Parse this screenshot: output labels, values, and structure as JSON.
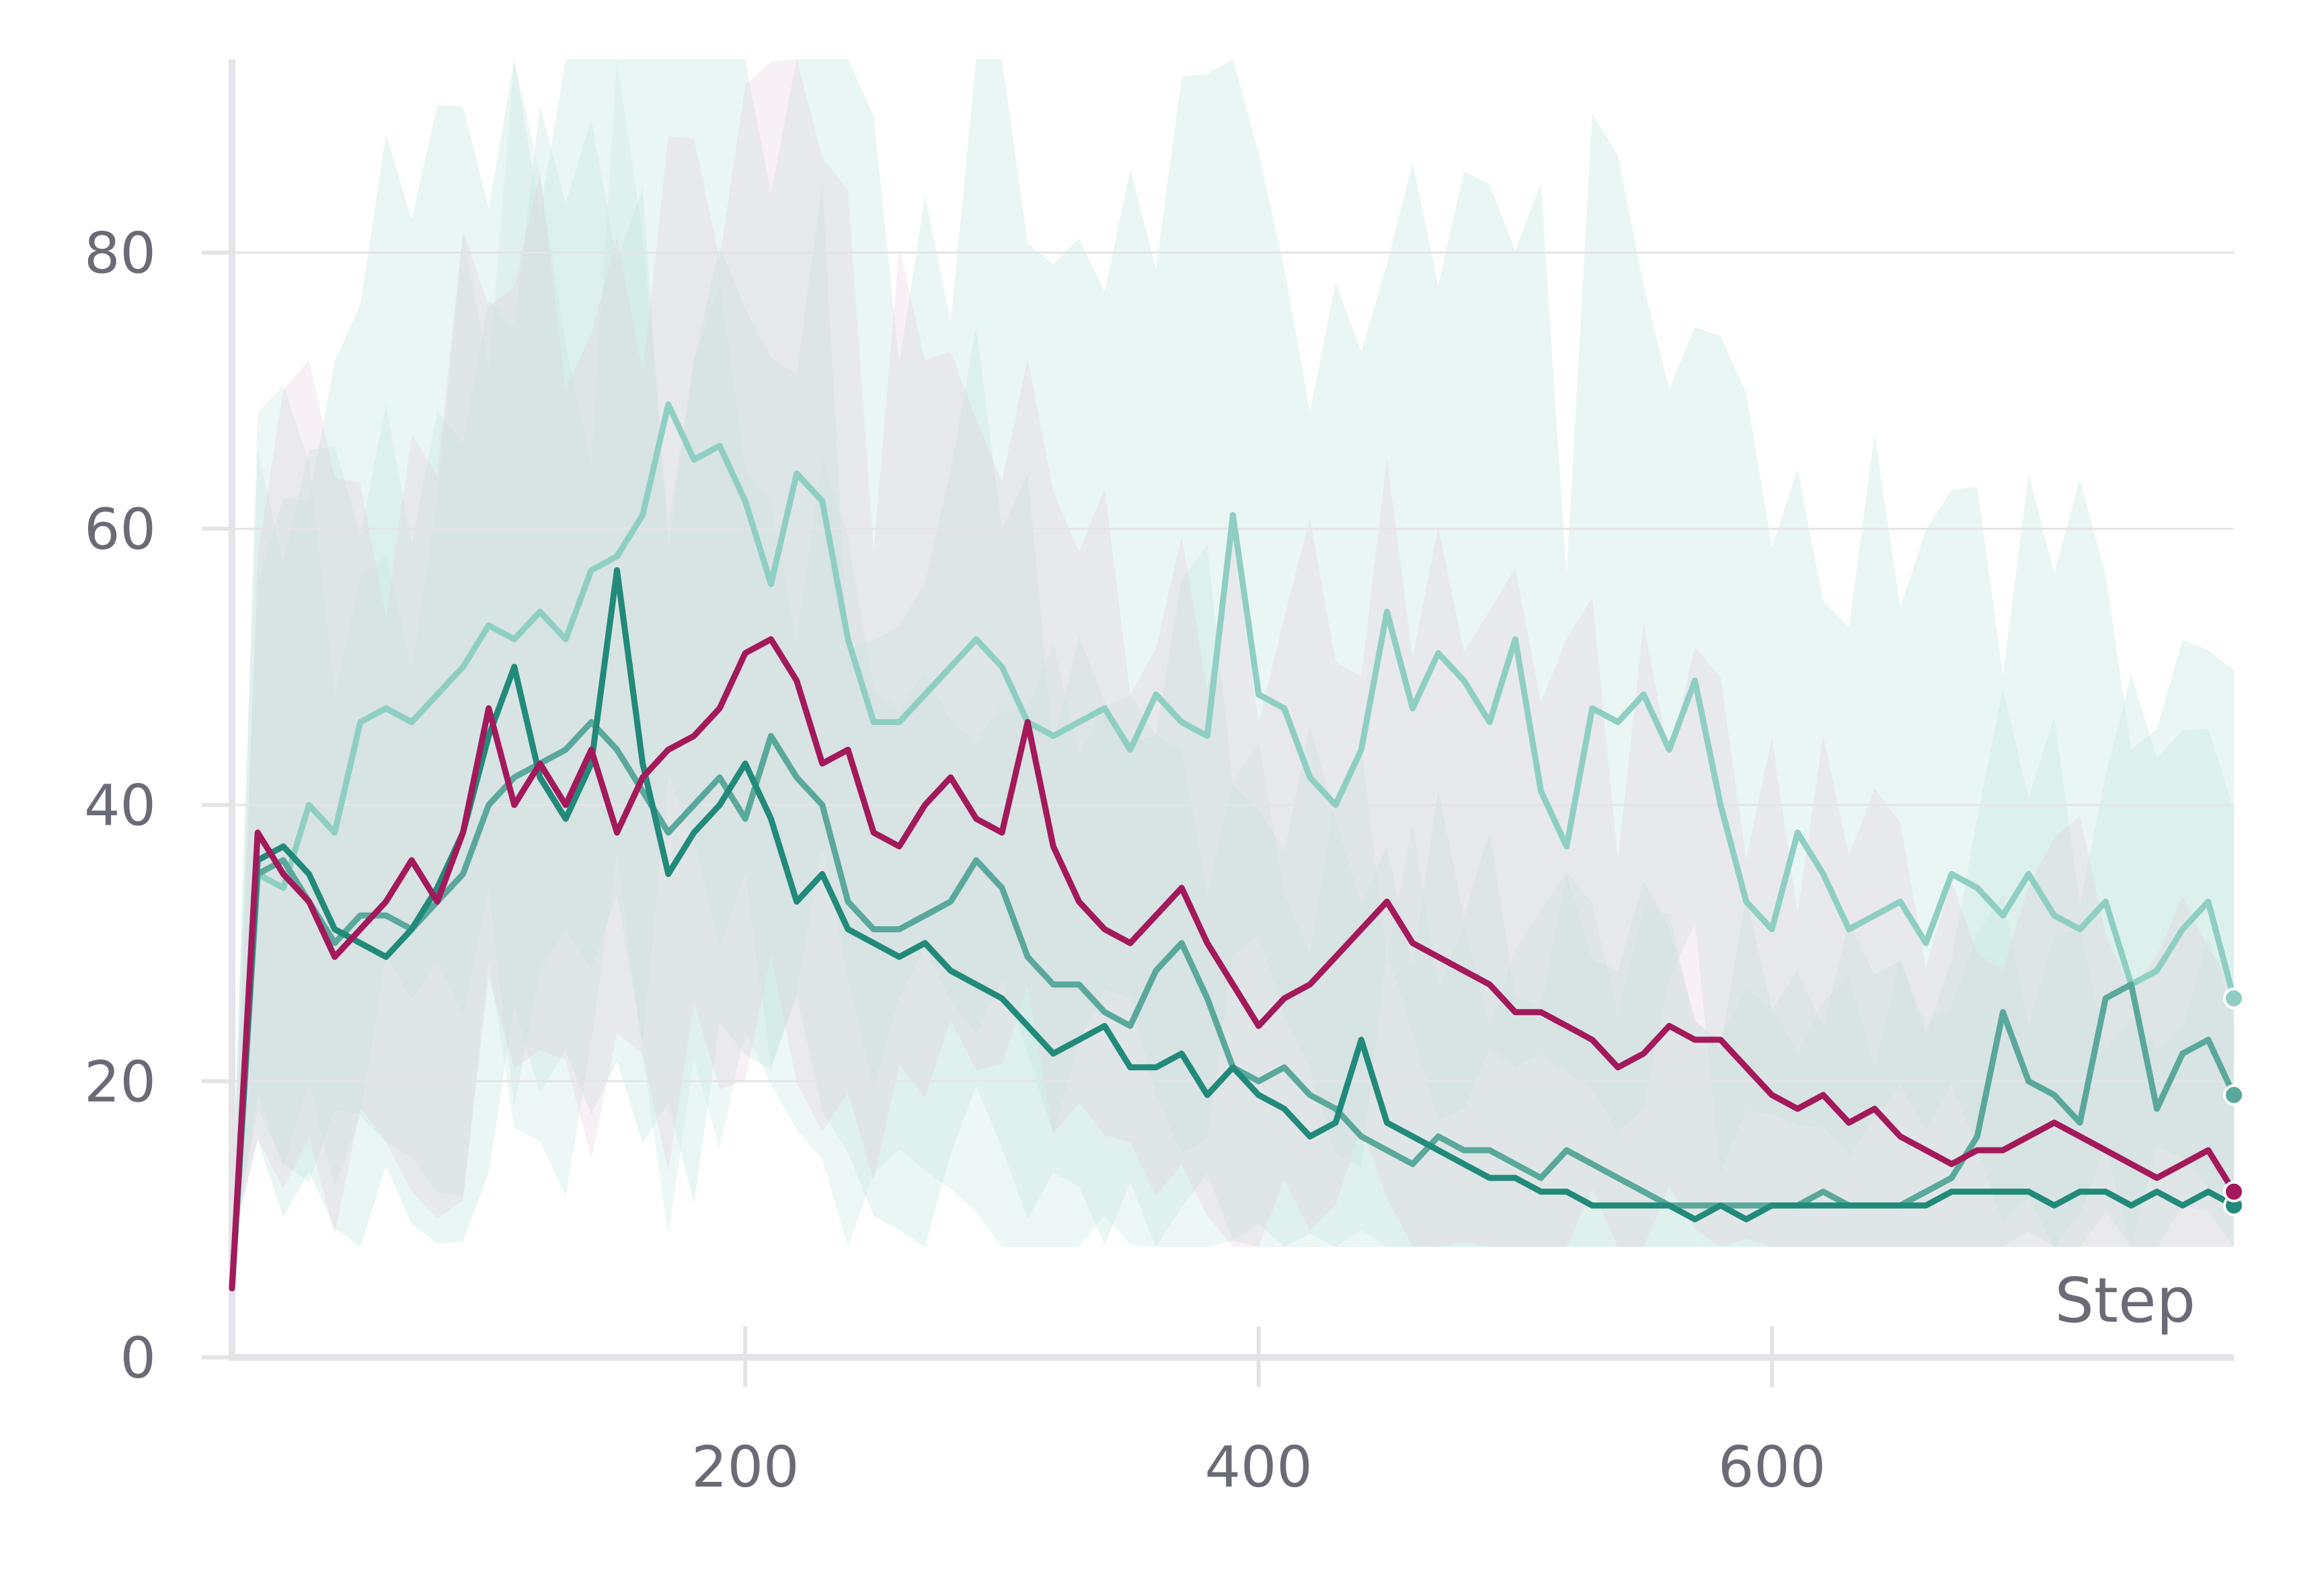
{
  "chart_data": {
    "type": "line",
    "xlabel": "Step",
    "ylabel": "",
    "xlim": [
      0,
      780
    ],
    "ylim": [
      0,
      94
    ],
    "x_ticks": [
      200,
      400,
      600
    ],
    "y_ticks": [
      0,
      20,
      40,
      60,
      80
    ],
    "grid": "horizontal",
    "legend": "none",
    "x": [
      0,
      10,
      20,
      30,
      40,
      50,
      60,
      70,
      80,
      90,
      100,
      110,
      120,
      130,
      140,
      150,
      160,
      170,
      180,
      190,
      200,
      210,
      220,
      230,
      240,
      250,
      260,
      270,
      280,
      290,
      300,
      310,
      320,
      330,
      340,
      350,
      360,
      370,
      380,
      390,
      400,
      410,
      420,
      430,
      440,
      450,
      460,
      470,
      480,
      490,
      500,
      510,
      520,
      530,
      540,
      550,
      560,
      570,
      580,
      590,
      600,
      610,
      620,
      630,
      640,
      650,
      660,
      670,
      680,
      690,
      700,
      710,
      720,
      730,
      740,
      750,
      760,
      770,
      780
    ],
    "series": [
      {
        "color": "#8fcfc3",
        "end_marker": true,
        "values": [
          5,
          35,
          34,
          40,
          38,
          46,
          47,
          46,
          48,
          50,
          53,
          52,
          54,
          52,
          57,
          58,
          61,
          69,
          65,
          66,
          62,
          56,
          64,
          62,
          52,
          46,
          46,
          48,
          50,
          52,
          50,
          46,
          45,
          46,
          47,
          44,
          48,
          46,
          45,
          61,
          48,
          47,
          42,
          40,
          44,
          54,
          47,
          51,
          49,
          46,
          52,
          41,
          37,
          47,
          46,
          48,
          44,
          49,
          40,
          33,
          31,
          38,
          35,
          31,
          32,
          33,
          30,
          35,
          34,
          32,
          35,
          32,
          31,
          33,
          27,
          28,
          31,
          33,
          26
        ]
      },
      {
        "color": "#5aa89c",
        "end_marker": true,
        "values": [
          5,
          35,
          36,
          33,
          30,
          32,
          32,
          31,
          33,
          35,
          40,
          42,
          43,
          44,
          46,
          44,
          41,
          38,
          40,
          42,
          39,
          45,
          42,
          40,
          33,
          31,
          31,
          32,
          33,
          36,
          34,
          29,
          27,
          27,
          25,
          24,
          28,
          30,
          26,
          21,
          20,
          21,
          19,
          18,
          16,
          15,
          14,
          16,
          15,
          15,
          14,
          13,
          15,
          14,
          13,
          12,
          11,
          11,
          11,
          11,
          11,
          11,
          12,
          11,
          11,
          11,
          12,
          13,
          16,
          25,
          20,
          19,
          17,
          26,
          27,
          18,
          22,
          23,
          19
        ]
      },
      {
        "color": "#228a7a",
        "end_marker": true,
        "values": [
          5,
          36,
          37,
          35,
          31,
          30,
          29,
          31,
          34,
          38,
          45,
          50,
          42,
          39,
          43,
          57,
          43,
          35,
          38,
          40,
          43,
          39,
          33,
          35,
          31,
          30,
          29,
          30,
          28,
          27,
          26,
          24,
          22,
          23,
          24,
          21,
          21,
          22,
          19,
          21,
          19,
          18,
          16,
          17,
          23,
          17,
          16,
          15,
          14,
          13,
          13,
          12,
          12,
          11,
          11,
          11,
          11,
          10,
          11,
          10,
          11,
          11,
          11,
          11,
          11,
          11,
          11,
          12,
          12,
          12,
          12,
          11,
          12,
          12,
          11,
          12,
          11,
          12,
          11
        ]
      },
      {
        "color": "#a3195b",
        "end_marker": true,
        "values": [
          5,
          38,
          35,
          33,
          29,
          31,
          33,
          36,
          33,
          38,
          47,
          40,
          43,
          40,
          44,
          38,
          42,
          44,
          45,
          47,
          51,
          52,
          49,
          43,
          44,
          38,
          37,
          40,
          42,
          39,
          38,
          46,
          37,
          33,
          31,
          30,
          32,
          34,
          30,
          27,
          24,
          26,
          27,
          29,
          31,
          33,
          30,
          29,
          28,
          27,
          25,
          25,
          24,
          23,
          21,
          22,
          24,
          23,
          23,
          21,
          19,
          18,
          19,
          17,
          18,
          16,
          15,
          14,
          15,
          15,
          16,
          17,
          16,
          15,
          14,
          13,
          14,
          15,
          12
        ]
      }
    ]
  }
}
